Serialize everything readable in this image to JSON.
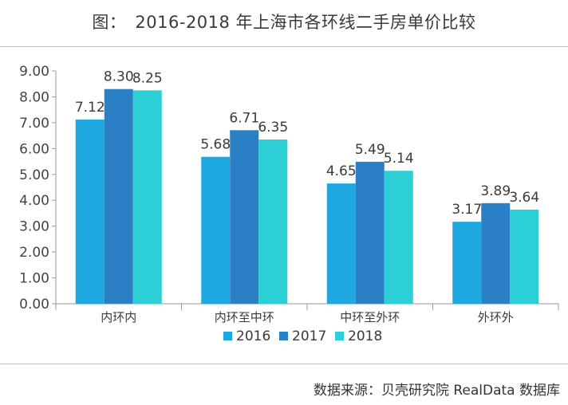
{
  "header": {
    "title": "图：　2016-2018 年上海市各环线二手房单价比较"
  },
  "footer": {
    "source": "数据来源：贝壳研究院 RealData 数据库"
  },
  "chart_data": {
    "type": "bar",
    "title": "图：　2016-2018 年上海市各环线二手房单价比较",
    "xlabel": "",
    "ylabel": "",
    "categories": [
      "内环内",
      "内环至中环",
      "中环至外环",
      "外环外"
    ],
    "series": [
      {
        "name": "2016",
        "color": "#1fa7e0",
        "values": [
          7.12,
          5.68,
          4.65,
          3.17
        ]
      },
      {
        "name": "2017",
        "color": "#2b7fc4",
        "values": [
          8.3,
          6.71,
          5.49,
          3.89
        ]
      },
      {
        "name": "2018",
        "color": "#2ccfd6",
        "values": [
          8.25,
          6.35,
          5.14,
          3.64
        ]
      }
    ],
    "ylim": [
      0,
      9
    ],
    "yticks": [
      "0.00",
      "1.00",
      "2.00",
      "3.00",
      "4.00",
      "5.00",
      "6.00",
      "7.00",
      "8.00",
      "9.00"
    ],
    "legend_position": "bottom-center",
    "grid": false
  }
}
